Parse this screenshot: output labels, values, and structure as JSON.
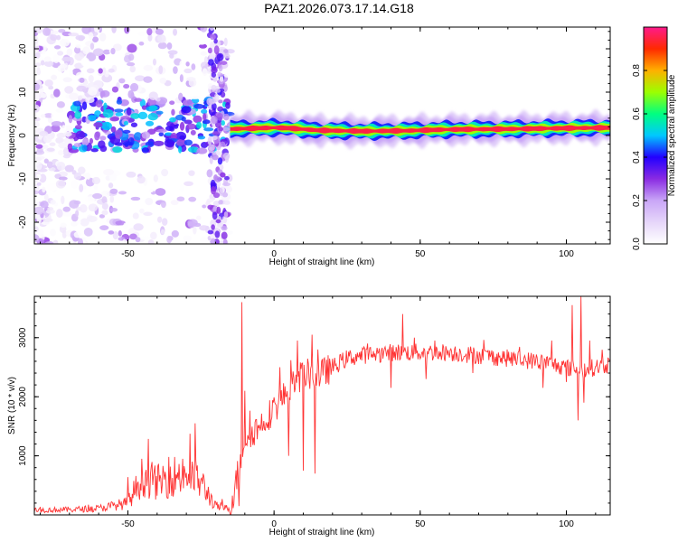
{
  "title": "PAZ1.2026.073.17.14.G18",
  "chart_data": [
    {
      "type": "heatmap",
      "xlabel": "Height of straight line (km)",
      "ylabel": "Frequency (Hz)",
      "xlim": [
        -82,
        115
      ],
      "ylim": [
        -25,
        25
      ],
      "xticks": [
        -50,
        0,
        50,
        100
      ],
      "yticks": [
        -20,
        -10,
        0,
        10,
        20
      ],
      "xtick_labels": [
        "-50",
        "0",
        "50",
        "100"
      ],
      "ytick_labels": [
        "-20",
        "-10",
        "0",
        "10",
        "20"
      ],
      "colorbar": {
        "label": "Normalized spectral amplitude",
        "range": [
          0,
          1
        ],
        "ticks": [
          0.0,
          0.2,
          0.4,
          0.6,
          0.8
        ],
        "tick_labels": [
          "0.0",
          "0.2",
          "0.4",
          "0.6",
          "0.8"
        ],
        "colormap": [
          "#ffffff",
          "#e6d6fa",
          "#c9a6f7",
          "#8a2be2",
          "#2200ff",
          "#00c8ff",
          "#00ff80",
          "#9cff00",
          "#ffb000",
          "#ff2a00",
          "#ff1a8c"
        ]
      },
      "ridge": {
        "x_start": -15,
        "x_end": 115,
        "frequency": [
          [
            -15,
            1.5
          ],
          [
            -10,
            1.6
          ],
          [
            0,
            1.8
          ],
          [
            5,
            1.7
          ],
          [
            15,
            1.2
          ],
          [
            30,
            1.0
          ],
          [
            45,
            1.1
          ],
          [
            60,
            1.4
          ],
          [
            80,
            1.5
          ],
          [
            100,
            1.7
          ],
          [
            115,
            1.8
          ]
        ],
        "amplitude": 0.95
      },
      "noise_region": {
        "x_range": [
          -82,
          -15
        ],
        "y_range": [
          -25,
          25
        ],
        "amplitude_max": 0.5
      }
    },
    {
      "type": "line",
      "xlabel": "Height of straight line (km)",
      "ylabel": "SNR (10 * v/v)",
      "xlim": [
        -82,
        115
      ],
      "ylim": [
        0,
        3700
      ],
      "xticks": [
        -50,
        0,
        50,
        100
      ],
      "yticks": [
        1000,
        2000,
        3000
      ],
      "xtick_labels": [
        "-50",
        "0",
        "50",
        "100"
      ],
      "ytick_labels": [
        "1000",
        "2000",
        "3000"
      ],
      "color": "#ff3333",
      "trend": [
        [
          -82,
          80
        ],
        [
          -70,
          90
        ],
        [
          -60,
          110
        ],
        [
          -50,
          200
        ],
        [
          -45,
          650
        ],
        [
          -40,
          550
        ],
        [
          -35,
          650
        ],
        [
          -30,
          700
        ],
        [
          -25,
          550
        ],
        [
          -20,
          150
        ],
        [
          -15,
          100
        ],
        [
          -12,
          800
        ],
        [
          -10,
          1300
        ],
        [
          -5,
          1500
        ],
        [
          0,
          1800
        ],
        [
          5,
          2100
        ],
        [
          10,
          2400
        ],
        [
          15,
          2350
        ],
        [
          20,
          2500
        ],
        [
          25,
          2650
        ],
        [
          30,
          2700
        ],
        [
          40,
          2750
        ],
        [
          50,
          2750
        ],
        [
          60,
          2750
        ],
        [
          70,
          2700
        ],
        [
          80,
          2650
        ],
        [
          90,
          2600
        ],
        [
          95,
          2550
        ],
        [
          100,
          2500
        ],
        [
          105,
          2450
        ],
        [
          110,
          2500
        ],
        [
          115,
          2550
        ]
      ],
      "spikes": [
        [
          -50,
          640
        ],
        [
          -36,
          980
        ],
        [
          -27,
          1550
        ],
        [
          -11,
          3600
        ],
        [
          -10,
          2100
        ],
        [
          2,
          2500
        ],
        [
          8,
          2950
        ],
        [
          13,
          3050
        ],
        [
          15,
          2800
        ],
        [
          32,
          2900
        ],
        [
          40,
          3500
        ],
        [
          44,
          3400
        ],
        [
          48,
          3000
        ],
        [
          55,
          2950
        ],
        [
          95,
          2950
        ],
        [
          100,
          3100
        ],
        [
          102,
          3550
        ],
        [
          105,
          3700
        ],
        [
          108,
          2950
        ]
      ],
      "dips": [
        [
          -12,
          150
        ],
        [
          5,
          1000
        ],
        [
          10,
          750
        ],
        [
          14,
          700
        ],
        [
          40,
          2150
        ],
        [
          52,
          2300
        ],
        [
          68,
          2400
        ],
        [
          92,
          2150
        ],
        [
          100,
          2250
        ],
        [
          104,
          1600
        ],
        [
          106,
          1900
        ]
      ]
    }
  ]
}
